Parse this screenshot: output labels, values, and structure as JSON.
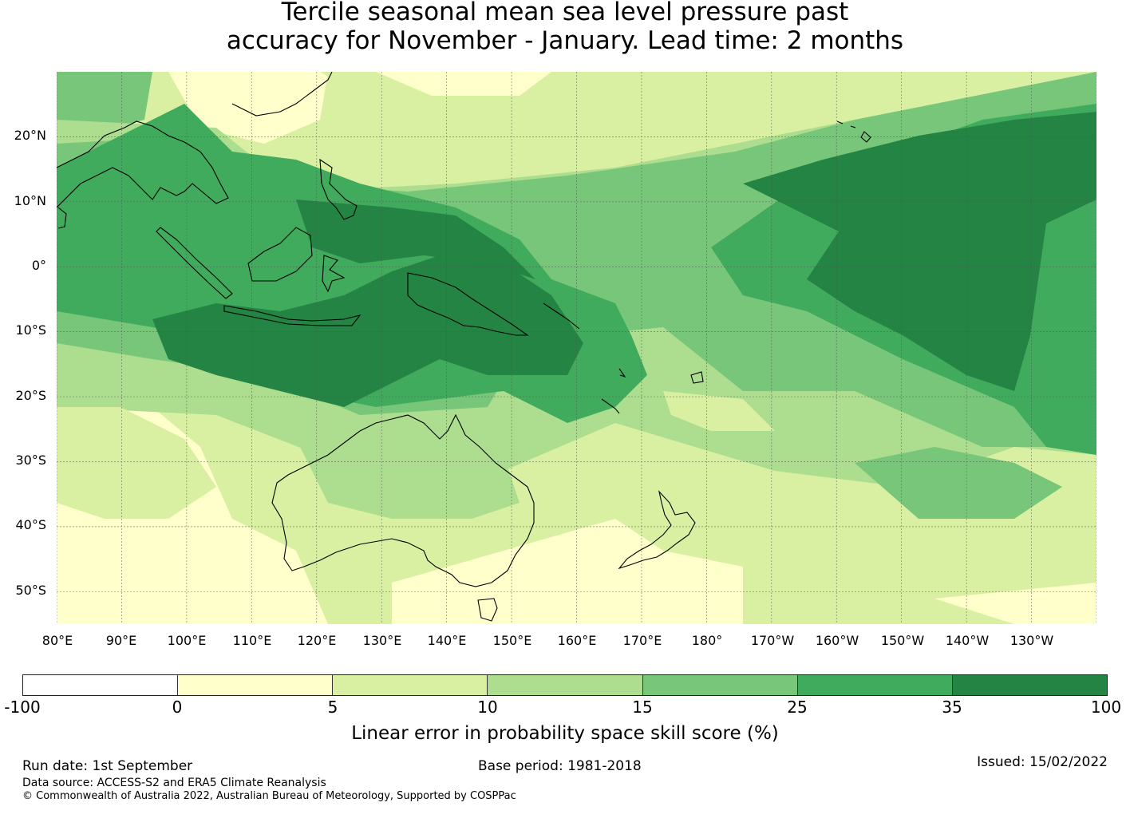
{
  "title": {
    "line1": "Tercile seasonal mean sea level pressure past",
    "line2": "accuracy for November - January. Lead time: 2 months"
  },
  "map": {
    "lat_labels": [
      "20°N",
      "10°N",
      "0°",
      "10°S",
      "20°S",
      "30°S",
      "40°S",
      "50°S"
    ],
    "lon_labels": [
      "80°E",
      "90°E",
      "100°E",
      "110°E",
      "120°E",
      "130°E",
      "140°E",
      "150°E",
      "160°E",
      "170°E",
      "180°",
      "170°W",
      "160°W",
      "150°W",
      "140°W",
      "130°W"
    ],
    "lat_range": [
      -55,
      30
    ],
    "lon_range": [
      80,
      240
    ]
  },
  "colorbar": {
    "label": "Linear error in probability space skill score (%)",
    "ticks": [
      "-100",
      "0",
      "5",
      "10",
      "15",
      "25",
      "35",
      "100"
    ],
    "colors": [
      "#ffffff",
      "#ffffcc",
      "#d9f0a3",
      "#addd8e",
      "#78c679",
      "#41ab5d",
      "#238443"
    ]
  },
  "footer": {
    "run_date": "Run date: 1st September",
    "base_period": "Base period: 1981-2018",
    "issued": "Issued: 15/02/2022",
    "data_source": "Data source: ACCESS-S2 and ERA5 Climate Reanalysis",
    "copyright": "© Commonwealth of Australia 2022, Australian Bureau of Meteorology, Supported by COSPPac"
  }
}
